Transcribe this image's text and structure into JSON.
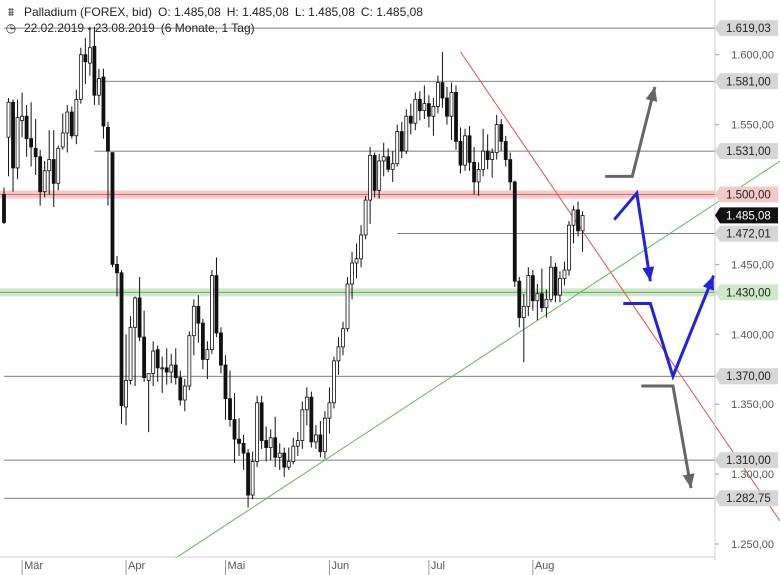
{
  "header": {
    "instrument": "Palladium (FOREX, bid)",
    "open": "O: 1.485,08",
    "high": "H: 1.485,08",
    "low": "L: 1.485,08",
    "close": "C: 1.485,08",
    "date_range": "22.02.2019 - 23.08.2019",
    "period": "(6 Monate, 1 Tag)"
  },
  "icons": {
    "instrument": "candlestick-chart-icon",
    "range": "clock-icon"
  },
  "chart_data": {
    "type": "candlestick",
    "title": "Palladium (FOREX, bid)",
    "ylim": [
      1240,
      1640
    ],
    "y_ticks": [
      {
        "v": 1250,
        "label": "1.250,00"
      },
      {
        "v": 1300,
        "label": "1.300,00"
      },
      {
        "v": 1350,
        "label": "1.350,00"
      },
      {
        "v": 1400,
        "label": "1.400,00"
      },
      {
        "v": 1450,
        "label": "1.450,00"
      },
      {
        "v": 1550,
        "label": "1.550,00"
      },
      {
        "v": 1600,
        "label": "1.600,00"
      }
    ],
    "x_ticks": [
      {
        "i": 4,
        "label": "Mär"
      },
      {
        "i": 27,
        "label": "Apr"
      },
      {
        "i": 49,
        "label": "Mai"
      },
      {
        "i": 72,
        "label": "Jun"
      },
      {
        "i": 94,
        "label": "Jul"
      },
      {
        "i": 117,
        "label": "Aug"
      }
    ],
    "levels": [
      {
        "v": 1619.03,
        "label": "1.619,03",
        "style": "line",
        "from_i": 0
      },
      {
        "v": 1581.0,
        "label": "1.581,00",
        "style": "line",
        "from_i": 20
      },
      {
        "v": 1531.0,
        "label": "1.531,00",
        "style": "line",
        "from_i": 20
      },
      {
        "v": 1500.0,
        "label": "1.500,00",
        "style": "red-band",
        "from_i": 0
      },
      {
        "v": 1472.01,
        "label": "1.472,01",
        "style": "line",
        "from_i": 87
      },
      {
        "v": 1430.0,
        "label": "1.430,00",
        "style": "green-band",
        "from_i": 0
      },
      {
        "v": 1370.0,
        "label": "1.370,00",
        "style": "line",
        "from_i": 0
      },
      {
        "v": 1310.0,
        "label": "1.310,00",
        "style": "line",
        "from_i": 0
      },
      {
        "v": 1282.75,
        "label": "1.282,75",
        "style": "line",
        "from_i": 0
      }
    ],
    "current_price": {
      "v": 1485.08,
      "label": "1.485,08"
    },
    "trendlines": [
      {
        "name": "resistance",
        "color": "#d9534f",
        "p1": {
          "i": 101,
          "v": 1602
        },
        "p2": {
          "i": 180,
          "v": 1227
        }
      },
      {
        "name": "support",
        "color": "#5cb85c",
        "p1": {
          "i": 38,
          "v": 1240
        },
        "p2": {
          "i": 184,
          "v": 1550
        }
      }
    ],
    "scenario_arrows": [
      {
        "color": "#666666",
        "points": [
          {
            "i": 133,
            "v": 1513
          },
          {
            "i": 139,
            "v": 1513
          },
          {
            "i": 144,
            "v": 1577
          }
        ]
      },
      {
        "color": "#2222dd",
        "points": [
          {
            "i": 135,
            "v": 1482
          },
          {
            "i": 140,
            "v": 1501
          },
          {
            "i": 143,
            "v": 1438
          }
        ]
      },
      {
        "color": "#2222dd",
        "points": [
          {
            "i": 137,
            "v": 1422
          },
          {
            "i": 143,
            "v": 1422
          },
          {
            "i": 148,
            "v": 1370
          },
          {
            "i": 157,
            "v": 1442
          }
        ]
      },
      {
        "color": "#666666",
        "points": [
          {
            "i": 141,
            "v": 1363
          },
          {
            "i": 148,
            "v": 1363
          },
          {
            "i": 152,
            "v": 1290
          }
        ]
      }
    ],
    "candles": [
      {
        "o": 1500,
        "h": 1505,
        "l": 1479,
        "c": 1480
      },
      {
        "o": 1541,
        "h": 1569,
        "l": 1513,
        "c": 1566
      },
      {
        "o": 1566,
        "h": 1568,
        "l": 1502,
        "c": 1519
      },
      {
        "o": 1519,
        "h": 1568,
        "l": 1511,
        "c": 1555
      },
      {
        "o": 1553,
        "h": 1573,
        "l": 1541,
        "c": 1556
      },
      {
        "o": 1556,
        "h": 1564,
        "l": 1527,
        "c": 1540
      },
      {
        "o": 1540,
        "h": 1566,
        "l": 1520,
        "c": 1534
      },
      {
        "o": 1533,
        "h": 1554,
        "l": 1514,
        "c": 1527
      },
      {
        "o": 1527,
        "h": 1532,
        "l": 1492,
        "c": 1502
      },
      {
        "o": 1502,
        "h": 1524,
        "l": 1498,
        "c": 1517
      },
      {
        "o": 1517,
        "h": 1546,
        "l": 1500,
        "c": 1525
      },
      {
        "o": 1525,
        "h": 1546,
        "l": 1491,
        "c": 1508
      },
      {
        "o": 1508,
        "h": 1535,
        "l": 1503,
        "c": 1533
      },
      {
        "o": 1534,
        "h": 1558,
        "l": 1532,
        "c": 1544
      },
      {
        "o": 1544,
        "h": 1564,
        "l": 1530,
        "c": 1559
      },
      {
        "o": 1559,
        "h": 1563,
        "l": 1540,
        "c": 1542
      },
      {
        "o": 1542,
        "h": 1575,
        "l": 1536,
        "c": 1568
      },
      {
        "o": 1568,
        "h": 1605,
        "l": 1565,
        "c": 1600
      },
      {
        "o": 1600,
        "h": 1612,
        "l": 1579,
        "c": 1595
      },
      {
        "o": 1594,
        "h": 1620,
        "l": 1585,
        "c": 1605
      },
      {
        "o": 1606,
        "h": 1620,
        "l": 1564,
        "c": 1571
      },
      {
        "o": 1571,
        "h": 1590,
        "l": 1564,
        "c": 1583
      },
      {
        "o": 1584,
        "h": 1590,
        "l": 1540,
        "c": 1549
      },
      {
        "o": 1548,
        "h": 1552,
        "l": 1492,
        "c": 1531
      },
      {
        "o": 1530,
        "h": 1530,
        "l": 1448,
        "c": 1450
      },
      {
        "o": 1450,
        "h": 1456,
        "l": 1427,
        "c": 1444
      },
      {
        "o": 1444,
        "h": 1446,
        "l": 1336,
        "c": 1349
      },
      {
        "o": 1348,
        "h": 1400,
        "l": 1335,
        "c": 1367
      },
      {
        "o": 1367,
        "h": 1413,
        "l": 1364,
        "c": 1405
      },
      {
        "o": 1405,
        "h": 1427,
        "l": 1363,
        "c": 1426
      },
      {
        "o": 1426,
        "h": 1441,
        "l": 1395,
        "c": 1398
      },
      {
        "o": 1398,
        "h": 1417,
        "l": 1366,
        "c": 1369
      },
      {
        "o": 1367,
        "h": 1372,
        "l": 1330,
        "c": 1372
      },
      {
        "o": 1372,
        "h": 1395,
        "l": 1363,
        "c": 1388
      },
      {
        "o": 1389,
        "h": 1392,
        "l": 1366,
        "c": 1376
      },
      {
        "o": 1376,
        "h": 1384,
        "l": 1358,
        "c": 1376
      },
      {
        "o": 1376,
        "h": 1390,
        "l": 1364,
        "c": 1373
      },
      {
        "o": 1373,
        "h": 1386,
        "l": 1365,
        "c": 1378
      },
      {
        "o": 1378,
        "h": 1390,
        "l": 1364,
        "c": 1369
      },
      {
        "o": 1369,
        "h": 1374,
        "l": 1349,
        "c": 1353
      },
      {
        "o": 1353,
        "h": 1368,
        "l": 1345,
        "c": 1363
      },
      {
        "o": 1363,
        "h": 1402,
        "l": 1360,
        "c": 1399
      },
      {
        "o": 1399,
        "h": 1425,
        "l": 1385,
        "c": 1420
      },
      {
        "o": 1420,
        "h": 1428,
        "l": 1394,
        "c": 1408
      },
      {
        "o": 1408,
        "h": 1411,
        "l": 1375,
        "c": 1382
      },
      {
        "o": 1382,
        "h": 1395,
        "l": 1368,
        "c": 1389
      },
      {
        "o": 1389,
        "h": 1446,
        "l": 1386,
        "c": 1442
      },
      {
        "o": 1442,
        "h": 1455,
        "l": 1398,
        "c": 1401
      },
      {
        "o": 1401,
        "h": 1405,
        "l": 1372,
        "c": 1378
      },
      {
        "o": 1378,
        "h": 1385,
        "l": 1339,
        "c": 1354
      },
      {
        "o": 1354,
        "h": 1374,
        "l": 1334,
        "c": 1339
      },
      {
        "o": 1339,
        "h": 1358,
        "l": 1308,
        "c": 1325
      },
      {
        "o": 1325,
        "h": 1340,
        "l": 1313,
        "c": 1322
      },
      {
        "o": 1322,
        "h": 1328,
        "l": 1303,
        "c": 1315
      },
      {
        "o": 1315,
        "h": 1318,
        "l": 1276,
        "c": 1285
      },
      {
        "o": 1285,
        "h": 1316,
        "l": 1282,
        "c": 1309
      },
      {
        "o": 1309,
        "h": 1356,
        "l": 1305,
        "c": 1351
      },
      {
        "o": 1351,
        "h": 1356,
        "l": 1318,
        "c": 1324
      },
      {
        "o": 1324,
        "h": 1334,
        "l": 1309,
        "c": 1319
      },
      {
        "o": 1319,
        "h": 1332,
        "l": 1310,
        "c": 1326
      },
      {
        "o": 1326,
        "h": 1341,
        "l": 1305,
        "c": 1312
      },
      {
        "o": 1312,
        "h": 1322,
        "l": 1303,
        "c": 1315
      },
      {
        "o": 1315,
        "h": 1319,
        "l": 1298,
        "c": 1305
      },
      {
        "o": 1305,
        "h": 1319,
        "l": 1303,
        "c": 1309
      },
      {
        "o": 1309,
        "h": 1326,
        "l": 1307,
        "c": 1320
      },
      {
        "o": 1320,
        "h": 1330,
        "l": 1313,
        "c": 1324
      },
      {
        "o": 1324,
        "h": 1352,
        "l": 1318,
        "c": 1346
      },
      {
        "o": 1346,
        "h": 1362,
        "l": 1335,
        "c": 1355
      },
      {
        "o": 1355,
        "h": 1359,
        "l": 1319,
        "c": 1323
      },
      {
        "o": 1323,
        "h": 1335,
        "l": 1318,
        "c": 1328
      },
      {
        "o": 1328,
        "h": 1338,
        "l": 1312,
        "c": 1316
      },
      {
        "o": 1316,
        "h": 1345,
        "l": 1311,
        "c": 1340
      },
      {
        "o": 1340,
        "h": 1362,
        "l": 1329,
        "c": 1351
      },
      {
        "o": 1351,
        "h": 1384,
        "l": 1347,
        "c": 1381
      },
      {
        "o": 1381,
        "h": 1398,
        "l": 1371,
        "c": 1391
      },
      {
        "o": 1391,
        "h": 1409,
        "l": 1385,
        "c": 1404
      },
      {
        "o": 1404,
        "h": 1441,
        "l": 1402,
        "c": 1436
      },
      {
        "o": 1436,
        "h": 1459,
        "l": 1425,
        "c": 1451
      },
      {
        "o": 1451,
        "h": 1465,
        "l": 1440,
        "c": 1454
      },
      {
        "o": 1454,
        "h": 1478,
        "l": 1448,
        "c": 1471
      },
      {
        "o": 1471,
        "h": 1499,
        "l": 1468,
        "c": 1496
      },
      {
        "o": 1496,
        "h": 1534,
        "l": 1479,
        "c": 1528
      },
      {
        "o": 1528,
        "h": 1530,
        "l": 1498,
        "c": 1503
      },
      {
        "o": 1503,
        "h": 1529,
        "l": 1497,
        "c": 1524
      },
      {
        "o": 1524,
        "h": 1537,
        "l": 1513,
        "c": 1527
      },
      {
        "o": 1527,
        "h": 1533,
        "l": 1516,
        "c": 1518
      },
      {
        "o": 1518,
        "h": 1531,
        "l": 1509,
        "c": 1522
      },
      {
        "o": 1522,
        "h": 1550,
        "l": 1520,
        "c": 1545
      },
      {
        "o": 1545,
        "h": 1552,
        "l": 1526,
        "c": 1531
      },
      {
        "o": 1531,
        "h": 1561,
        "l": 1529,
        "c": 1556
      },
      {
        "o": 1556,
        "h": 1565,
        "l": 1543,
        "c": 1551
      },
      {
        "o": 1551,
        "h": 1573,
        "l": 1546,
        "c": 1568
      },
      {
        "o": 1568,
        "h": 1574,
        "l": 1553,
        "c": 1560
      },
      {
        "o": 1560,
        "h": 1578,
        "l": 1554,
        "c": 1565
      },
      {
        "o": 1565,
        "h": 1571,
        "l": 1548,
        "c": 1556
      },
      {
        "o": 1556,
        "h": 1569,
        "l": 1542,
        "c": 1563
      },
      {
        "o": 1563,
        "h": 1585,
        "l": 1558,
        "c": 1580
      },
      {
        "o": 1580,
        "h": 1602,
        "l": 1562,
        "c": 1569
      },
      {
        "o": 1569,
        "h": 1577,
        "l": 1550,
        "c": 1556
      },
      {
        "o": 1556,
        "h": 1580,
        "l": 1539,
        "c": 1573
      },
      {
        "o": 1573,
        "h": 1578,
        "l": 1532,
        "c": 1538
      },
      {
        "o": 1538,
        "h": 1548,
        "l": 1515,
        "c": 1521
      },
      {
        "o": 1521,
        "h": 1547,
        "l": 1517,
        "c": 1542
      },
      {
        "o": 1542,
        "h": 1549,
        "l": 1517,
        "c": 1523
      },
      {
        "o": 1523,
        "h": 1534,
        "l": 1500,
        "c": 1509
      },
      {
        "o": 1509,
        "h": 1523,
        "l": 1499,
        "c": 1518
      },
      {
        "o": 1518,
        "h": 1547,
        "l": 1513,
        "c": 1531
      },
      {
        "o": 1531,
        "h": 1543,
        "l": 1518,
        "c": 1525
      },
      {
        "o": 1525,
        "h": 1533,
        "l": 1512,
        "c": 1530
      },
      {
        "o": 1530,
        "h": 1557,
        "l": 1525,
        "c": 1550
      },
      {
        "o": 1550,
        "h": 1554,
        "l": 1531,
        "c": 1538
      },
      {
        "o": 1538,
        "h": 1542,
        "l": 1520,
        "c": 1525
      },
      {
        "o": 1525,
        "h": 1530,
        "l": 1503,
        "c": 1509
      },
      {
        "o": 1509,
        "h": 1510,
        "l": 1434,
        "c": 1438
      },
      {
        "o": 1438,
        "h": 1441,
        "l": 1405,
        "c": 1412
      },
      {
        "o": 1412,
        "h": 1429,
        "l": 1380,
        "c": 1420
      },
      {
        "o": 1420,
        "h": 1448,
        "l": 1413,
        "c": 1442
      },
      {
        "o": 1442,
        "h": 1446,
        "l": 1417,
        "c": 1424
      },
      {
        "o": 1424,
        "h": 1436,
        "l": 1410,
        "c": 1429
      },
      {
        "o": 1429,
        "h": 1447,
        "l": 1416,
        "c": 1419
      },
      {
        "o": 1419,
        "h": 1432,
        "l": 1412,
        "c": 1425
      },
      {
        "o": 1425,
        "h": 1456,
        "l": 1423,
        "c": 1448
      },
      {
        "o": 1448,
        "h": 1451,
        "l": 1423,
        "c": 1428
      },
      {
        "o": 1428,
        "h": 1445,
        "l": 1423,
        "c": 1440
      },
      {
        "o": 1440,
        "h": 1452,
        "l": 1435,
        "c": 1446
      },
      {
        "o": 1446,
        "h": 1481,
        "l": 1442,
        "c": 1478
      },
      {
        "o": 1478,
        "h": 1492,
        "l": 1465,
        "c": 1489
      },
      {
        "o": 1489,
        "h": 1495,
        "l": 1470,
        "c": 1474
      },
      {
        "o": 1474,
        "h": 1488,
        "l": 1459,
        "c": 1485
      }
    ]
  }
}
